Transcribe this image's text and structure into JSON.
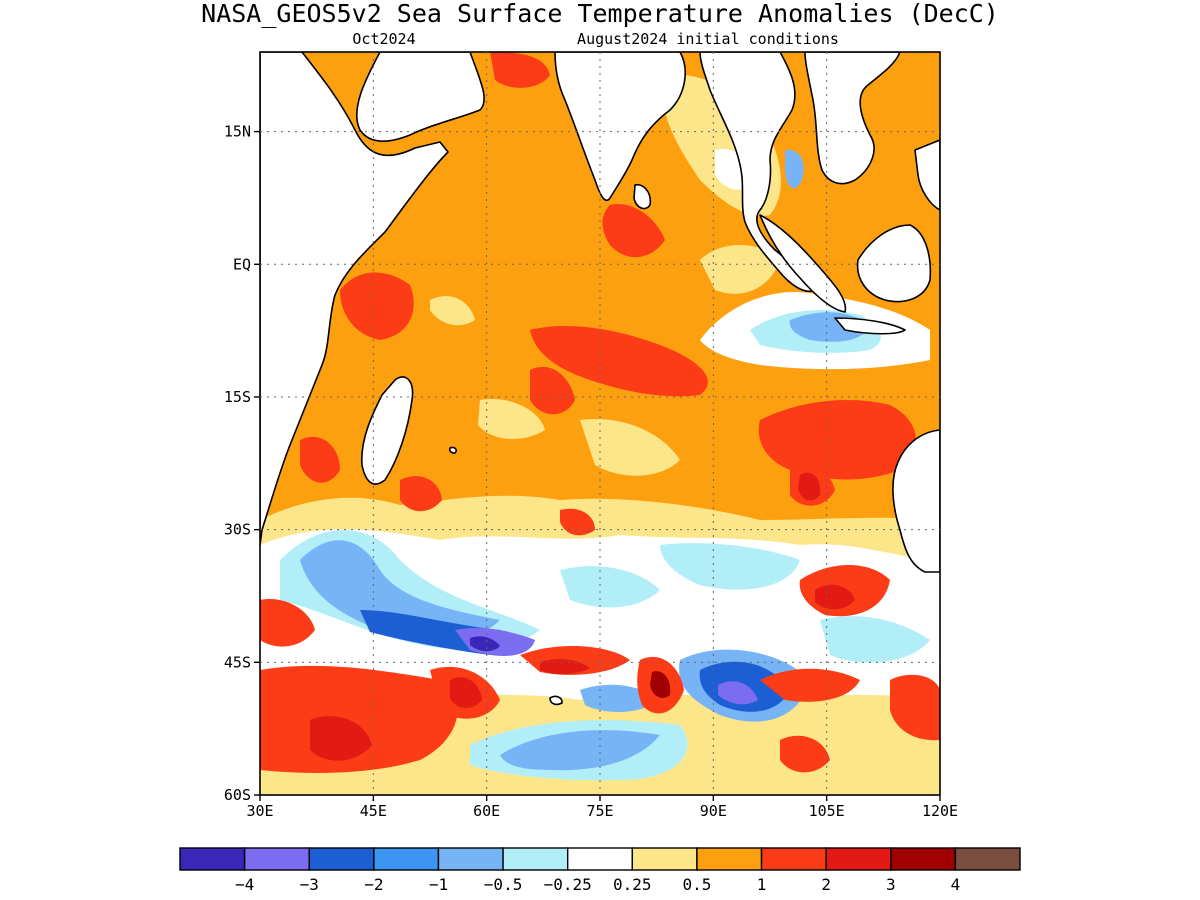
{
  "header": {
    "title": "NASA_GEOS5v2 Sea Surface Temperature Anomalies (DecC)",
    "month": "Oct2024",
    "init": "August2024 initial conditions"
  },
  "map": {
    "lon_range": [
      30,
      120
    ],
    "lat_range": [
      -60,
      24
    ],
    "x_ticks": [
      "30E",
      "45E",
      "60E",
      "75E",
      "90E",
      "105E",
      "120E"
    ],
    "y_ticks": [
      "15N",
      "EQ",
      "15S",
      "30S",
      "45S",
      "60S"
    ],
    "grid": true,
    "coastlines": true
  },
  "colorbar": {
    "colors": [
      "#3a26b8",
      "#7b6cf0",
      "#1c5fd4",
      "#3c95f0",
      "#76b4f6",
      "#b2eef8",
      "#ffffff",
      "#fde58a",
      "#fda010",
      "#fc3c16",
      "#e31a14",
      "#a00000",
      "#7a4e3e"
    ],
    "labels": [
      "−4",
      "−3",
      "−2",
      "−1",
      "−0.5",
      "−0.25",
      "0.25",
      "0.5",
      "1",
      "2",
      "3",
      "4"
    ]
  }
}
